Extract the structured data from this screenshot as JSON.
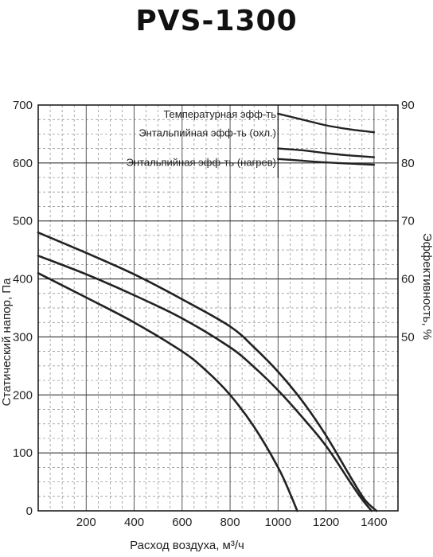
{
  "title": "PVS-1300",
  "chart_data": {
    "type": "line",
    "title": "PVS-1300",
    "xlabel": "Расход воздуха, м³/ч",
    "ylabel": "Статический напор, Па",
    "y2label": "Эффективность, %",
    "xlim": [
      0,
      1500
    ],
    "ylim": [
      0,
      700
    ],
    "y2lim": [
      40,
      90
    ],
    "xticks": [
      200,
      400,
      600,
      800,
      1000,
      1200,
      1400
    ],
    "yticks": [
      0,
      100,
      200,
      300,
      400,
      500,
      600,
      700
    ],
    "y2ticks": [
      50,
      60,
      70,
      80,
      90
    ],
    "grid": true,
    "pressure_series": [
      {
        "x": [
          0,
          200,
          400,
          600,
          800,
          900,
          1000,
          1100,
          1200,
          1300,
          1360,
          1410
        ],
        "y": [
          480,
          445,
          408,
          365,
          318,
          282,
          240,
          190,
          130,
          60,
          20,
          0
        ]
      },
      {
        "x": [
          0,
          200,
          400,
          600,
          800,
          900,
          1000,
          1100,
          1200,
          1300,
          1350,
          1390
        ],
        "y": [
          440,
          408,
          372,
          332,
          282,
          248,
          208,
          162,
          112,
          50,
          20,
          0
        ]
      },
      {
        "x": [
          0,
          200,
          400,
          600,
          700,
          800,
          900,
          1000,
          1050,
          1080
        ],
        "y": [
          410,
          368,
          325,
          275,
          242,
          200,
          145,
          75,
          30,
          0
        ]
      }
    ],
    "efficiency_series": [
      {
        "name": "Температурная эфф-ть",
        "x": [
          1000,
          1100,
          1200,
          1300,
          1400
        ],
        "y": [
          88.5,
          87.5,
          86.5,
          85.8,
          85.3
        ]
      },
      {
        "name": "Энтальпийная эфф-ть (охл.)",
        "x": [
          1000,
          1100,
          1200,
          1300,
          1400
        ],
        "y": [
          82.5,
          82.2,
          81.7,
          81.3,
          81.0
        ]
      },
      {
        "name": "Энтальпийная эфф-ть (нагрев)",
        "x": [
          1000,
          1100,
          1200,
          1300,
          1400
        ],
        "y": [
          80.7,
          80.4,
          80.1,
          79.9,
          79.7
        ]
      }
    ]
  }
}
